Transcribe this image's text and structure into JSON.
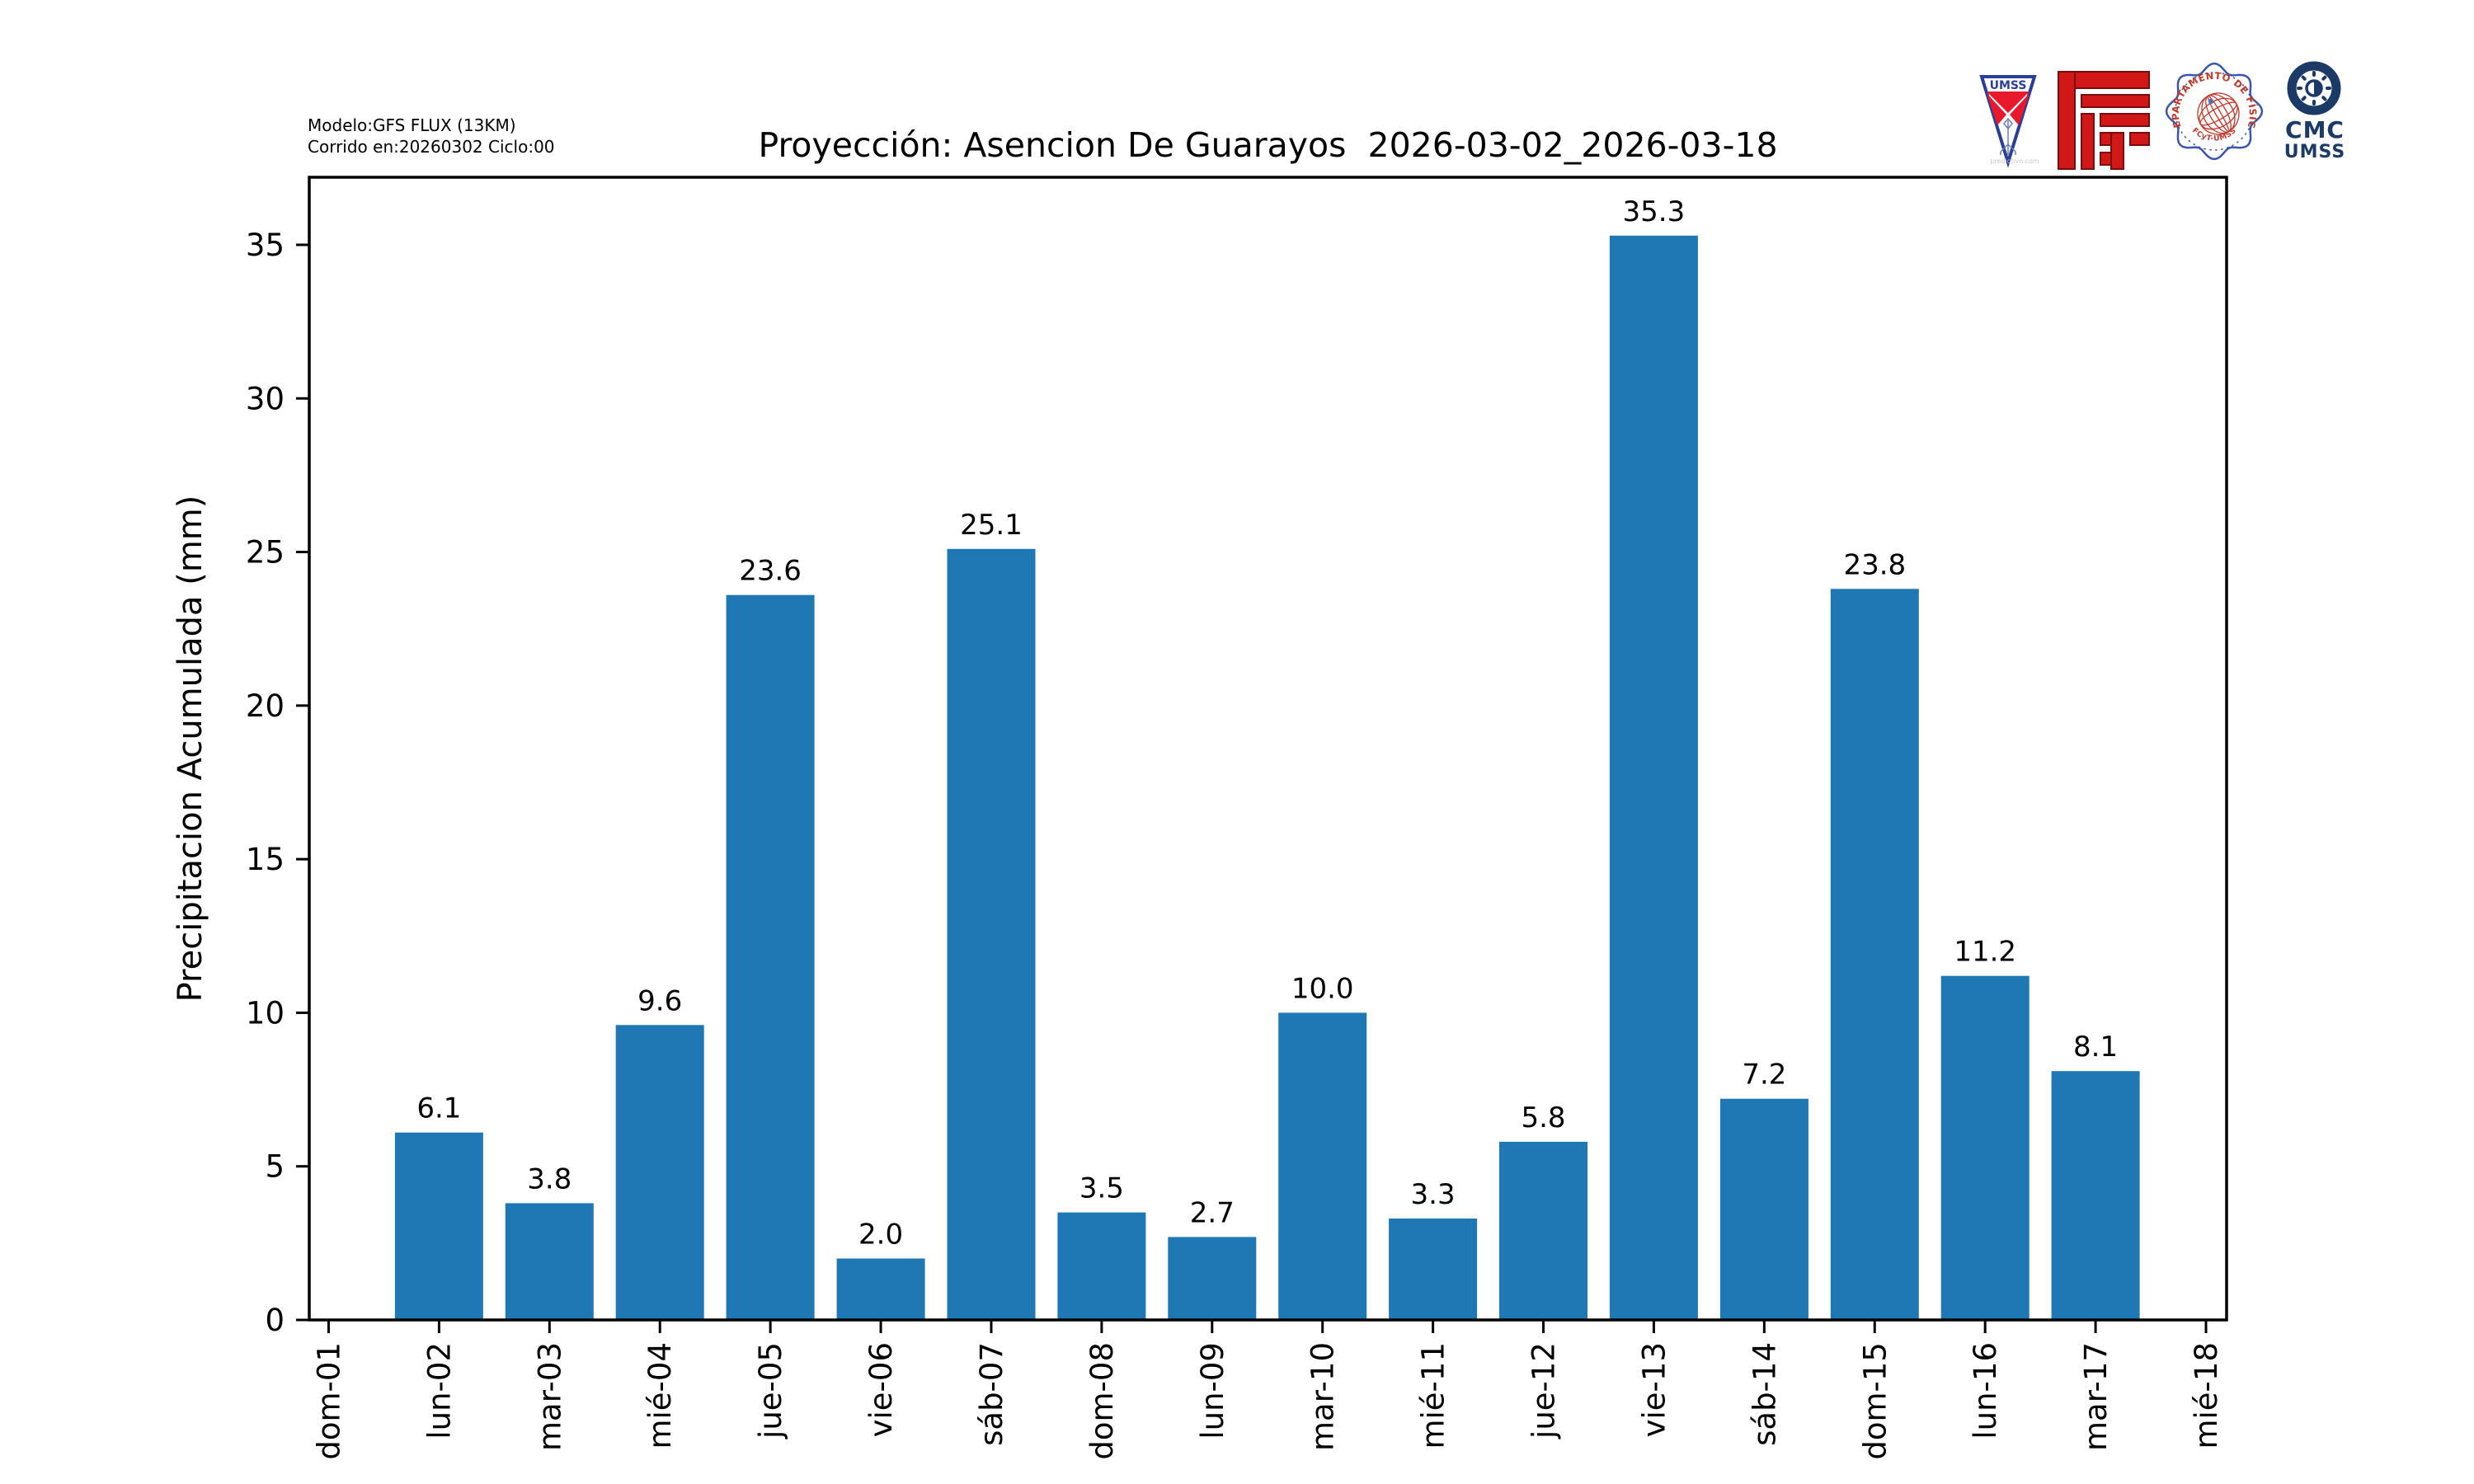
{
  "header": {
    "model_line1": "Modelo:GFS FLUX (13KM)",
    "model_line2": "Corrido en:20260302 Ciclo:00",
    "title": "Proyección: Asencion De Guarayos  2026-03-02_2026-03-18"
  },
  "logos": {
    "pennant": {
      "name": "UMSS",
      "watermark": "predictivo.com"
    },
    "seal": {
      "arc_text": "DEPARTAMENTO DE FÍSICA",
      "bottom_text": "FCyT-UMSS"
    },
    "cmc": {
      "line1": "CMC",
      "line2": "UMSS"
    }
  },
  "chart_data": {
    "type": "bar",
    "title": "Proyección: Asencion De Guarayos  2026-03-02_2026-03-18",
    "categories": [
      "dom-01",
      "lun-02",
      "mar-03",
      "mié-04",
      "jue-05",
      "vie-06",
      "sáb-07",
      "dom-08",
      "lun-09",
      "mar-10",
      "mié-11",
      "jue-12",
      "vie-13",
      "sáb-14",
      "dom-15",
      "lun-16",
      "mar-17",
      "mié-18"
    ],
    "values": [
      0,
      6.1,
      3.8,
      9.6,
      23.6,
      2.0,
      25.1,
      3.5,
      2.7,
      10.0,
      3.3,
      5.8,
      35.3,
      7.2,
      23.8,
      11.2,
      8.1,
      0
    ],
    "xlabel": "",
    "ylabel": "Precipitacion Acumulada (mm)",
    "yticks": [
      0,
      5,
      10,
      15,
      20,
      25,
      30,
      35
    ],
    "ylim": [
      0,
      37.2
    ],
    "bar_color": "#1f77b4",
    "grid": false,
    "legend": null,
    "value_label_decimals": 1
  }
}
